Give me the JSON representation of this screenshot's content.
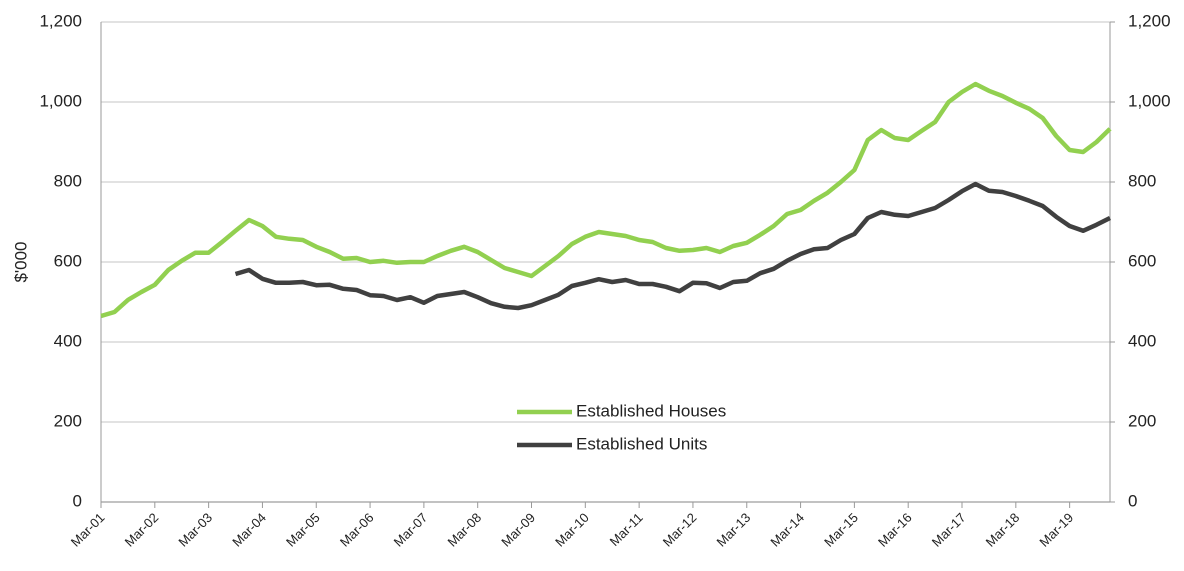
{
  "chart_data": {
    "type": "line",
    "y_label": "$'000",
    "categories": [
      "Mar-01",
      null,
      null,
      null,
      "Mar-02",
      null,
      null,
      null,
      "Mar-03",
      null,
      null,
      null,
      "Mar-04",
      null,
      null,
      null,
      "Mar-05",
      null,
      null,
      null,
      "Mar-06",
      null,
      null,
      null,
      "Mar-07",
      null,
      null,
      null,
      "Mar-08",
      null,
      null,
      null,
      "Mar-09",
      null,
      null,
      null,
      "Mar-10",
      null,
      null,
      null,
      "Mar-11",
      null,
      null,
      null,
      "Mar-12",
      null,
      null,
      null,
      "Mar-13",
      null,
      null,
      null,
      "Mar-14",
      null,
      null,
      null,
      "Mar-15",
      null,
      null,
      null,
      "Mar-16",
      null,
      null,
      null,
      "Mar-17",
      null,
      null,
      null,
      "Mar-18",
      null,
      null,
      null,
      "Mar-19",
      null,
      null,
      null
    ],
    "series": [
      {
        "name": "Established Houses",
        "color": "#92d050",
        "values": [
          465,
          475,
          505,
          525,
          543,
          580,
          603,
          623,
          623,
          650,
          678,
          705,
          690,
          663,
          658,
          655,
          638,
          625,
          608,
          610,
          600,
          603,
          598,
          600,
          600,
          615,
          628,
          638,
          625,
          605,
          585,
          575,
          565,
          590,
          615,
          645,
          663,
          675,
          670,
          665,
          655,
          650,
          635,
          628,
          630,
          635,
          625,
          640,
          648,
          668,
          690,
          720,
          730,
          753,
          773,
          800,
          830,
          905,
          930,
          910,
          905,
          928,
          950,
          1000,
          1025,
          1045,
          1028,
          1015,
          998,
          983,
          960,
          915,
          880,
          875,
          900,
          933
        ]
      },
      {
        "name": "Established Units",
        "color": "#404040",
        "values": [
          null,
          null,
          null,
          null,
          null,
          null,
          null,
          null,
          null,
          null,
          570,
          580,
          558,
          548,
          548,
          550,
          542,
          543,
          533,
          530,
          517,
          515,
          505,
          512,
          498,
          515,
          520,
          525,
          512,
          497,
          488,
          485,
          492,
          505,
          518,
          540,
          548,
          557,
          550,
          555,
          545,
          545,
          538,
          527,
          548,
          547,
          535,
          550,
          553,
          572,
          583,
          603,
          620,
          632,
          635,
          655,
          670,
          710,
          725,
          718,
          715,
          725,
          735,
          755,
          777,
          795,
          778,
          775,
          765,
          753,
          740,
          713,
          690,
          678,
          693,
          710
        ]
      }
    ],
    "ylim": [
      0,
      1200
    ],
    "yticks": [
      0,
      200,
      400,
      600,
      800,
      {
        "value": 1000,
        "label": "1,000"
      },
      {
        "value": 1200,
        "label": "1,200"
      }
    ],
    "y2lim": [
      0,
      1200
    ],
    "y2ticks": [
      0,
      200,
      400,
      600,
      800,
      {
        "value": 1000,
        "label": "1,000"
      },
      {
        "value": 1200,
        "label": "1,200"
      }
    ],
    "grid": true
  }
}
